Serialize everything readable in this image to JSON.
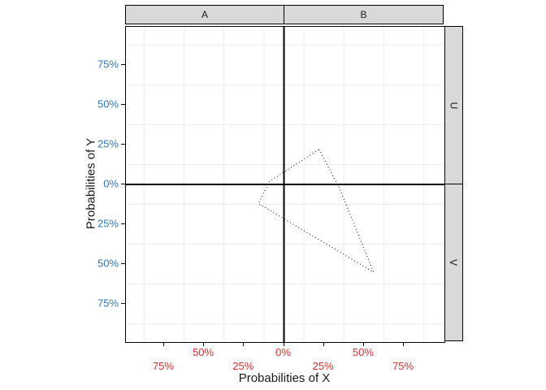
{
  "figure": {
    "background": "#ffffff",
    "strip_fill": "#d9d9d9",
    "panel_border_color": "#000000",
    "grid_color": "#ececec",
    "zero_line_color": "#000000",
    "x_tick_color": "#d62f2f",
    "y_tick_color": "#3377b4"
  },
  "axes": {
    "x_title": "Probabilities of X",
    "y_title": "Probabilities of Y",
    "x_ticks": [
      {
        "value": -75,
        "label": "75%",
        "row": 2
      },
      {
        "value": -50,
        "label": "50%",
        "row": 1
      },
      {
        "value": -25,
        "label": "25%",
        "row": 2
      },
      {
        "value": 0,
        "label": "0%",
        "row": 1
      },
      {
        "value": 25,
        "label": "25%",
        "row": 2
      },
      {
        "value": 50,
        "label": "50%",
        "row": 1
      },
      {
        "value": 75,
        "label": "75%",
        "row": 2
      }
    ],
    "y_ticks": [
      {
        "value": 75,
        "label": "75%"
      },
      {
        "value": 50,
        "label": "50%"
      },
      {
        "value": 25,
        "label": "25%"
      },
      {
        "value": 0,
        "label": "0%"
      },
      {
        "value": -25,
        "label": "25%"
      },
      {
        "value": -50,
        "label": "50%"
      },
      {
        "value": -75,
        "label": "75%"
      }
    ],
    "minor_gridlines": [
      -87.5,
      -62.5,
      -37.5,
      -12.5,
      12.5,
      37.5,
      62.5,
      87.5
    ],
    "x_range_pct": [
      -99,
      100
    ],
    "y_range_pct": [
      -99,
      99
    ]
  },
  "chart_data": {
    "type": "polygon-outline",
    "xlabel": "Probabilities of X",
    "ylabel": "Probabilities of Y",
    "facet_columns": [
      "A",
      "B"
    ],
    "facet_rows": [
      "U",
      "V"
    ],
    "zero_lines": {
      "x": 0,
      "y": 0
    },
    "polygon_points_pct": [
      [
        22,
        22
      ],
      [
        35,
        -3
      ],
      [
        56,
        -55
      ],
      [
        -16,
        -12
      ],
      [
        -9,
        2
      ]
    ],
    "line_style": "dotted",
    "line_color": "#000000"
  }
}
